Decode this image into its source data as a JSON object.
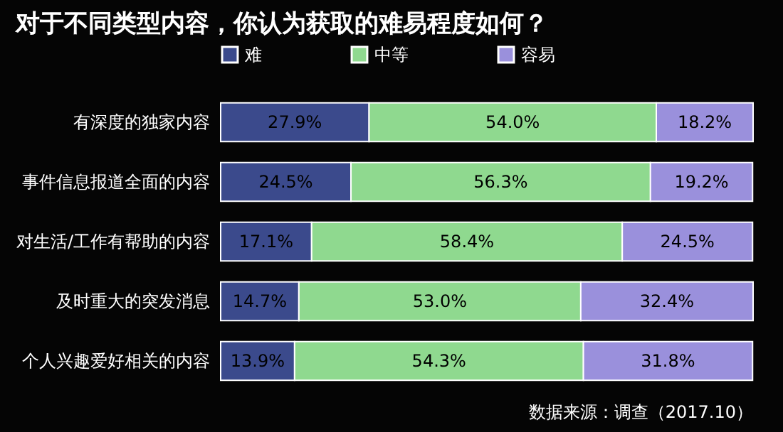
{
  "chart_data": {
    "type": "bar",
    "orientation": "horizontal",
    "stacked": true,
    "title": "对于不同类型内容，你认为获取的难易程度如何？",
    "categories": [
      "有深度的独家内容",
      "事件信息报道全面的内容",
      "对生活/工作有帮助的内容",
      "及时重大的突发消息",
      "个人兴趣爱好相关的内容"
    ],
    "series": [
      {
        "name": "难",
        "color": "#3b4a8c",
        "values": [
          27.9,
          24.5,
          17.1,
          14.7,
          13.9
        ],
        "value_labels": [
          "27.9%",
          "24.5%",
          "17.1%",
          "14.7%",
          "13.9%"
        ]
      },
      {
        "name": "中等",
        "color": "#8fd98f",
        "values": [
          54.0,
          56.3,
          58.4,
          53.0,
          54.3
        ],
        "value_labels": [
          "54.0%",
          "56.3%",
          "58.4%",
          "53.0%",
          "54.3%"
        ]
      },
      {
        "name": "容易",
        "color": "#9a90dc",
        "values": [
          18.2,
          19.2,
          24.5,
          32.4,
          31.8
        ],
        "value_labels": [
          "18.2%",
          "19.2%",
          "24.5%",
          "32.4%",
          "31.8%"
        ]
      }
    ],
    "legend": "top",
    "grid": false,
    "annotations": [
      "数据来源：调查（2017.10）"
    ]
  }
}
